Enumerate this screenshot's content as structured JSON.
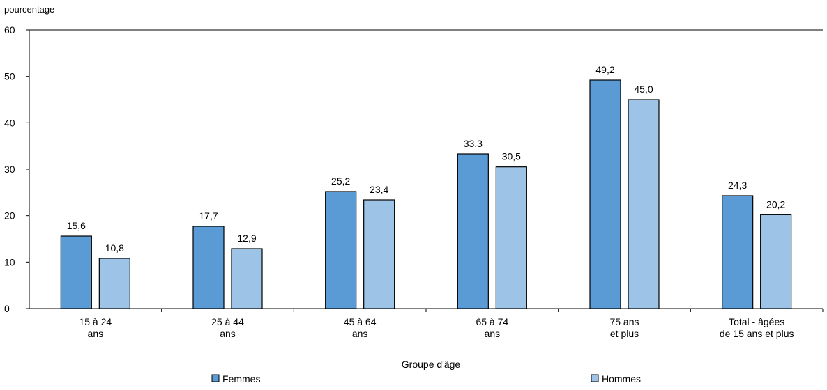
{
  "chart_data": {
    "type": "bar",
    "unit_label": "pourcentage",
    "xlabel": "Groupe d'âge",
    "ylabel": "",
    "ylim": [
      0,
      60
    ],
    "yticks": [
      "0",
      "10",
      "20",
      "30",
      "40",
      "50",
      "60"
    ],
    "categories": [
      [
        "15 à 24",
        "ans"
      ],
      [
        "25 à 44",
        "ans"
      ],
      [
        "45 à 64",
        "ans"
      ],
      [
        "65 à 74",
        "ans"
      ],
      [
        "75 ans",
        "et plus"
      ],
      [
        "Total - âgées",
        "de 15 ans et plus"
      ]
    ],
    "series": [
      {
        "name": "Femmes",
        "color": "#5b9bd5",
        "values": [
          15.6,
          17.7,
          25.2,
          33.3,
          49.2,
          24.3
        ],
        "labels": [
          "15,6",
          "17,7",
          "25,2",
          "33,3",
          "49,2",
          "24,3"
        ]
      },
      {
        "name": "Hommes",
        "color": "#9dc3e6",
        "values": [
          10.8,
          12.9,
          23.4,
          30.5,
          45.0,
          20.2
        ],
        "labels": [
          "10,8",
          "12,9",
          "23,4",
          "30,5",
          "45,0",
          "20,2"
        ]
      }
    ],
    "grid": false,
    "legend_position": "bottom"
  }
}
